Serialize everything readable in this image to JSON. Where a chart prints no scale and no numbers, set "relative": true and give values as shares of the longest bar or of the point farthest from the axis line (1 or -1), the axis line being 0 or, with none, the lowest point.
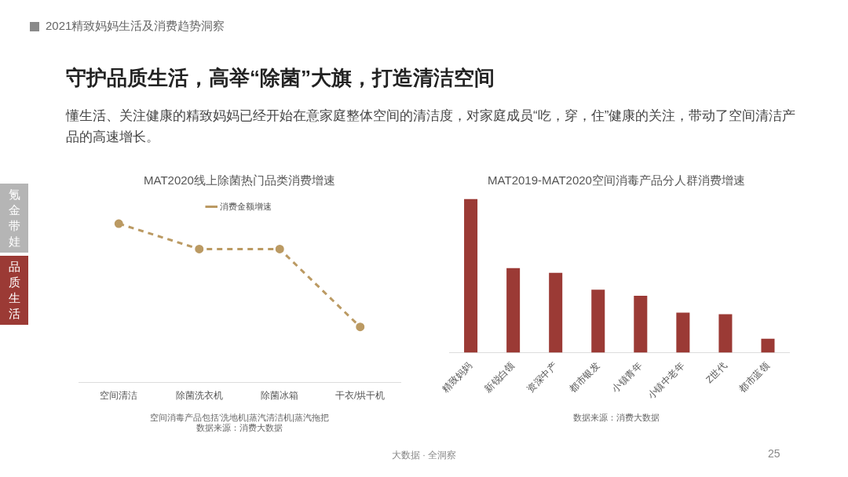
{
  "chart_data": [
    {
      "type": "other",
      "title": "守护品质生活，高举“除菌”大旗，打造清洁空间",
      "subtitle": "懂生活、关注健康的精致妈妈已经开始在意家庭整体空间的清洁度，对家庭成员“吃，穿，住”健康的关注，带动了空间清洁产品的高速增长。",
      "annotations": [
        "2021精致妈妈生活及消费趋势洞察",
        "氪金带娃",
        "品质生活",
        "大数据 · 全洞察",
        "25"
      ]
    },
    {
      "type": "line",
      "title": "MAT2020线上除菌热门品类消费增速",
      "relative": true,
      "categories": [
        "空间清洁",
        "除菌洗衣机",
        "除菌冰箱",
        "干衣/烘干机"
      ],
      "series": [
        {
          "name": "消费金额增速",
          "color": "#bb9a63",
          "values": [
            1,
            0.84,
            0.84,
            0.35
          ]
        }
      ],
      "marker": "circle",
      "line_style": "dashed",
      "legend": "top",
      "grid": false,
      "annotations": [
        "空间消毒产品包括‘洗地机|蒸汽清洁机|蒸汽拖把",
        "数据来源：消费大数据"
      ]
    },
    {
      "type": "bar",
      "title": "MAT2019-MAT2020空间消毒产品分人群消费增速",
      "relative": true,
      "categories": [
        "精致妈妈",
        "新锐白领",
        "资深中产",
        "都市银发",
        "小镇青年",
        "小镇中老年",
        "Z世代",
        "都市蓝领"
      ],
      "series": [
        {
          "color": "#9b3a35",
          "values": [
            1,
            0.55,
            0.52,
            0.41,
            0.37,
            0.26,
            0.25,
            0.09
          ]
        }
      ],
      "legend": false,
      "grid": false,
      "annotations": [
        "数据来源：消费大数据"
      ]
    }
  ]
}
